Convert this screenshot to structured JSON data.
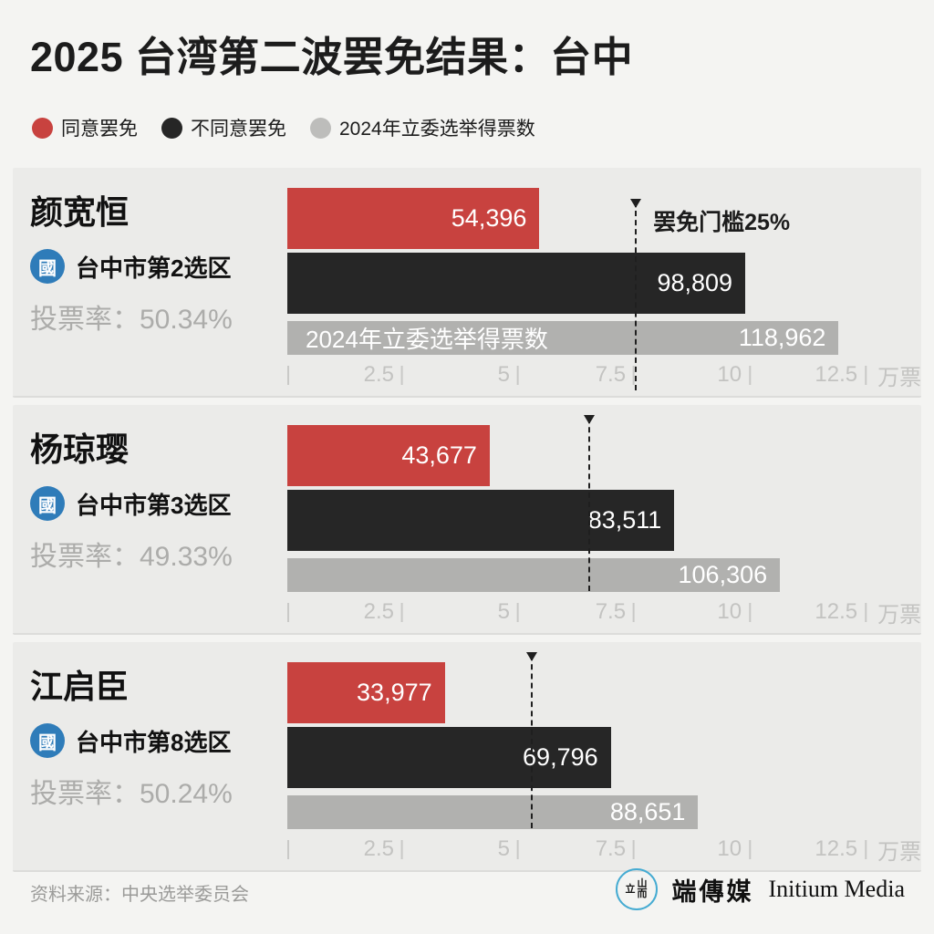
{
  "title": "2025 台湾第二波罢免结果：台中",
  "legend": [
    {
      "label": "同意罢免",
      "color": "#C8423F"
    },
    {
      "label": "不同意罢免",
      "color": "#262626"
    },
    {
      "label": "2024年立委选举得票数",
      "color": "#BDBDBB"
    }
  ],
  "axis": {
    "max_wan": 13.6,
    "ticks": [
      {
        "v": 2.5,
        "label": "2.5"
      },
      {
        "v": 5,
        "label": "5"
      },
      {
        "v": 7.5,
        "label": "7.5"
      },
      {
        "v": 10,
        "label": "10"
      },
      {
        "v": 12.5,
        "label": "12.5"
      }
    ],
    "unit": "万票"
  },
  "panels": [
    {
      "name": "颜宽恒",
      "party_badge": "國",
      "district": "台中市第2选区",
      "turnout": "投票率：50.34%",
      "agree": 54396,
      "agree_label": "54,396",
      "disagree": 98809,
      "disagree_label": "98,809",
      "votes2024": 118962,
      "votes2024_label": "118,962",
      "votes2024_inner_label": "2024年立委选举得票数",
      "threshold_wan": 7.5,
      "threshold_label": "罢免门槛25%"
    },
    {
      "name": "杨琼璎",
      "party_badge": "國",
      "district": "台中市第3选区",
      "turnout": "投票率：49.33%",
      "agree": 43677,
      "agree_label": "43,677",
      "disagree": 83511,
      "disagree_label": "83,511",
      "votes2024": 106306,
      "votes2024_label": "106,306",
      "threshold_wan": 6.5
    },
    {
      "name": "江启臣",
      "party_badge": "國",
      "district": "台中市第8选区",
      "turnout": "投票率：50.24%",
      "agree": 33977,
      "agree_label": "33,977",
      "disagree": 69796,
      "disagree_label": "69,796",
      "votes2024": 88651,
      "votes2024_label": "88,651",
      "threshold_wan": 5.25
    }
  ],
  "footer": {
    "source": "资料来源：中央选举委员会",
    "logo_zh": "端傳媒",
    "logo_en": "Initium Media"
  },
  "chart_data": {
    "type": "bar",
    "orientation": "horizontal",
    "title": "2025 台湾第二波罢免结果：台中",
    "xlabel_unit": "万票",
    "xlim_wan": [
      0,
      13.6
    ],
    "xticks_wan": [
      2.5,
      5,
      7.5,
      10,
      12.5
    ],
    "legend_entries": [
      "同意罢免",
      "不同意罢免",
      "2024年立委选举得票数"
    ],
    "threshold_annotation": "罢免门槛25%",
    "groups": [
      {
        "candidate": "颜宽恒",
        "party": "國",
        "district": "台中市第2选区",
        "turnout_pct": 50.34,
        "agree_recall": 54396,
        "disagree_recall": 98809,
        "votes_2024": 118962,
        "threshold_votes_wan": 7.5
      },
      {
        "candidate": "杨琼璎",
        "party": "國",
        "district": "台中市第3选区",
        "turnout_pct": 49.33,
        "agree_recall": 43677,
        "disagree_recall": 83511,
        "votes_2024": 106306,
        "threshold_votes_wan": 6.5
      },
      {
        "candidate": "江启臣",
        "party": "國",
        "district": "台中市第8选区",
        "turnout_pct": 50.24,
        "agree_recall": 33977,
        "disagree_recall": 69796,
        "votes_2024": 88651,
        "threshold_votes_wan": 5.25
      }
    ]
  }
}
